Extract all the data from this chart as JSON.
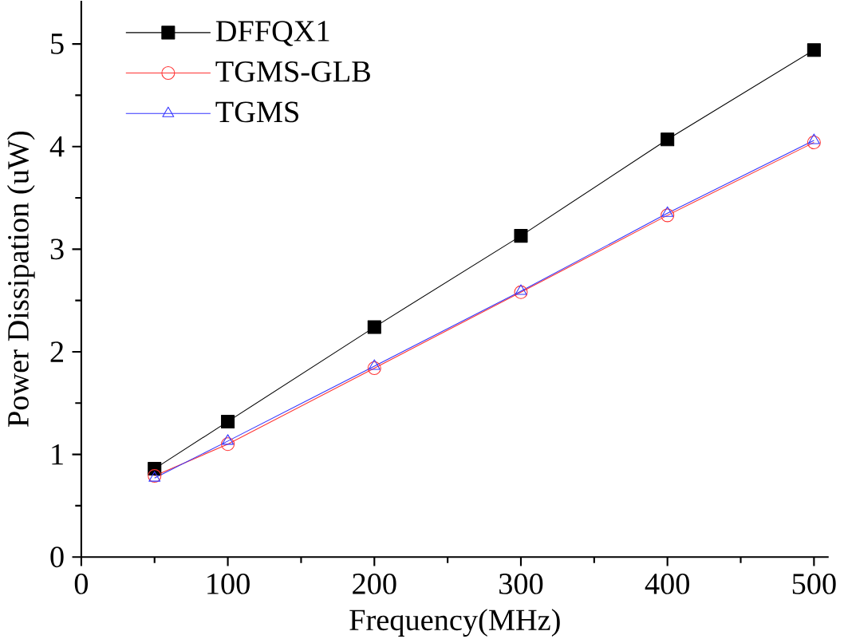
{
  "chart_data": {
    "type": "line",
    "xlabel": "Frequency(MHz)",
    "ylabel": "Power Dissipation (uW)",
    "x": [
      50,
      100,
      200,
      300,
      400,
      500
    ],
    "series": [
      {
        "name": "DFFQX1",
        "color": "#000000",
        "marker": "square",
        "values": [
          0.86,
          1.32,
          2.24,
          3.13,
          4.07,
          4.94
        ]
      },
      {
        "name": "TGMS-GLB",
        "color": "#ff3333",
        "marker": "circle",
        "values": [
          0.79,
          1.1,
          1.84,
          2.58,
          3.33,
          4.04
        ]
      },
      {
        "name": "TGMS",
        "color": "#3333ff",
        "marker": "triangle",
        "values": [
          0.77,
          1.13,
          1.86,
          2.59,
          3.35,
          4.06
        ]
      }
    ],
    "xlim": [
      0,
      510
    ],
    "ylim": [
      0,
      5.42
    ],
    "xticks": [
      0,
      100,
      200,
      300,
      400,
      500
    ],
    "yticks": [
      0,
      1,
      2,
      3,
      4,
      5
    ],
    "grid": false,
    "legend": "top left",
    "line_style": "solid"
  }
}
